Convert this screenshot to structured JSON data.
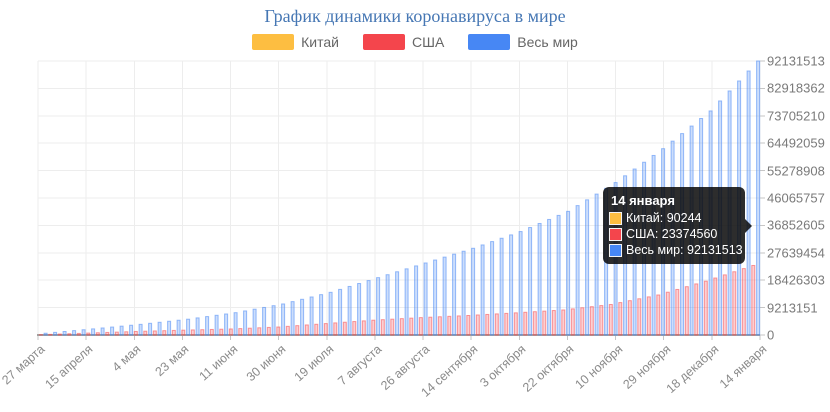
{
  "page": {
    "title": "График динамики коронавируса в мире"
  },
  "colors": {
    "title_text": "#4677B4",
    "china": "#FDBE41",
    "usa": "#F4454C",
    "world": "#4787F4",
    "grid": "#EDEDED",
    "axis": "#A0A0A0",
    "tick": "#C6C6C6",
    "axis_label": "#8A8A8A"
  },
  "chart_data": {
    "type": "bar",
    "title": "График динамики коронавируса в мире",
    "legend_position": "top",
    "grid": true,
    "categories": [
      "27 марта",
      "15 апреля",
      "4 мая",
      "23 мая",
      "11 июня",
      "30 июня",
      "19 июля",
      "7 августа",
      "26 августа",
      "14 сентября",
      "3 октября",
      "22 октября",
      "10 ноября",
      "29 ноября",
      "18 декабря",
      "14 января"
    ],
    "series": [
      {
        "name": "Китай",
        "color": "#FDBE41",
        "values": [
          82078,
          83356,
          83959,
          84084,
          84216,
          84780,
          85314,
          85500,
          85700,
          85900,
          86180,
          86500,
          86800,
          87300,
          87900,
          90244
        ]
      },
      {
        "name": "США",
        "color": "#F4454C",
        "values": [
          101657,
          644089,
          1187316,
          1622670,
          2023347,
          2679230,
          3833271,
          4973568,
          5841428,
          6555383,
          7444382,
          8411259,
          10258656,
          13454254,
          18100000,
          23374560
        ]
      },
      {
        "name": "Весь мир",
        "color": "#4787F4",
        "values": [
          593291,
          2056054,
          3581884,
          5310327,
          7501538,
          10434835,
          14348858,
          19282972,
          24215678,
          29155581,
          34779241,
          41570883,
          51251715,
          62644943,
          75336124,
          92131513
        ]
      }
    ],
    "ylim": [
      0,
      92131513
    ],
    "y_tick_labels": [
      "92131513",
      "82918362",
      "73705210",
      "64492059",
      "55278908",
      "46065757",
      "36852605",
      "27639454",
      "18426303",
      "9213151",
      "0"
    ],
    "xlabel": "",
    "ylabel": ""
  },
  "tooltip": {
    "date": "14 января",
    "rows": [
      {
        "name": "Китай",
        "value": "90244",
        "color": "#FDBE41"
      },
      {
        "name": "США",
        "value": "23374560",
        "color": "#F4454C"
      },
      {
        "name": "Весь мир",
        "value": "92131513",
        "color": "#4787F4"
      }
    ]
  }
}
